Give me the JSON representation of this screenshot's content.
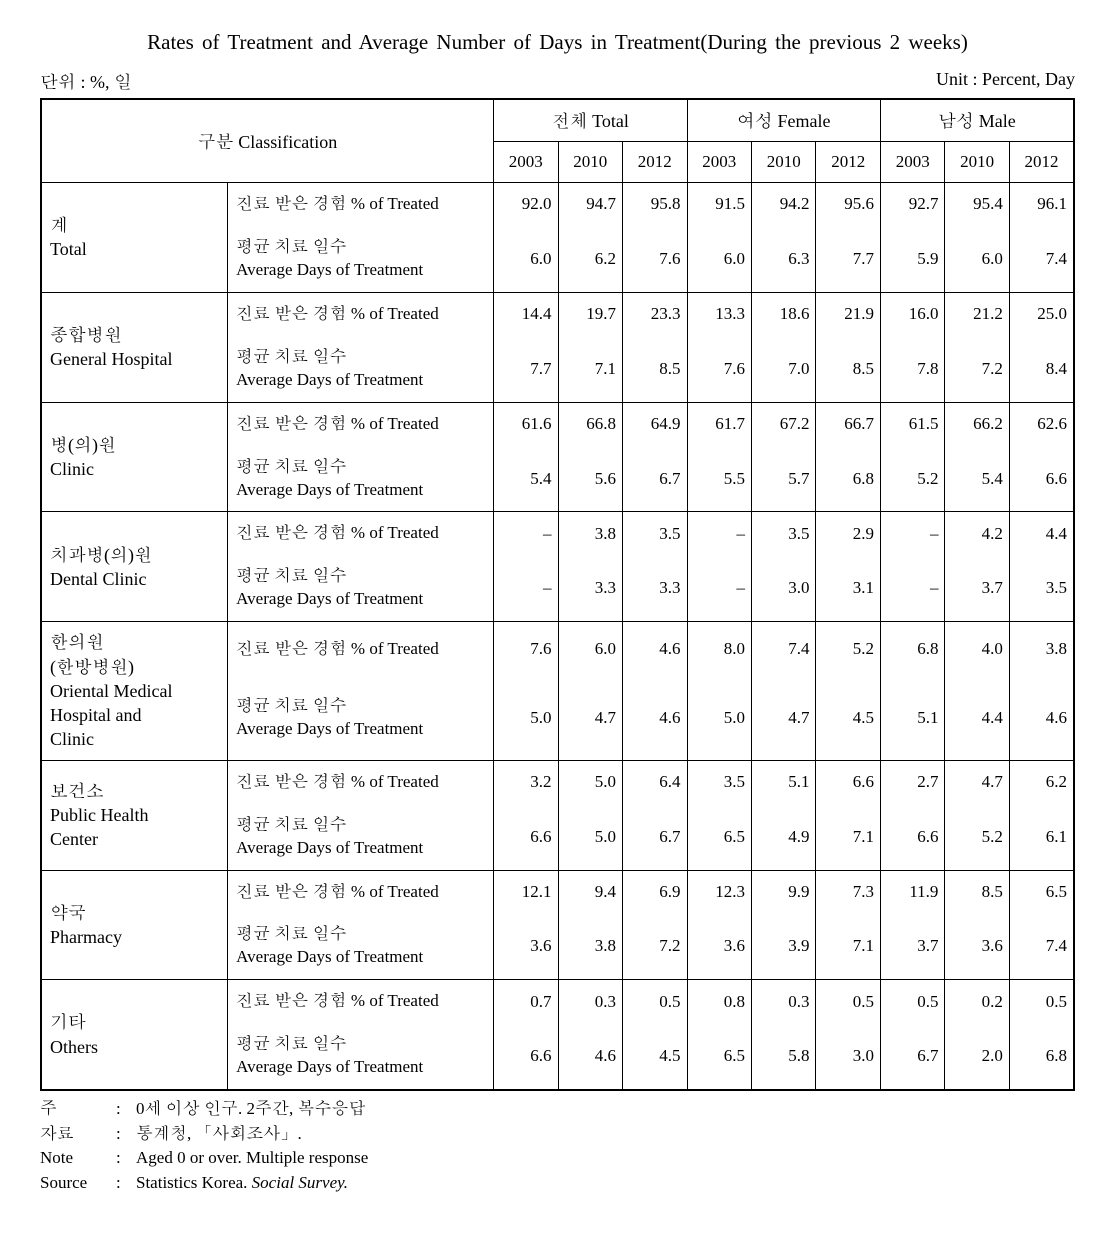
{
  "title": "Rates of Treatment and Average Number of Days in Treatment(During the previous 2 weeks)",
  "unit_left": "단위 : %, 일",
  "unit_right": "Unit : Percent, Day",
  "headers": {
    "classification": "구분 Classification",
    "total": "전체 Total",
    "female": "여성 Female",
    "male": "남성 Male",
    "years": [
      "2003",
      "2010",
      "2012"
    ]
  },
  "metrics": {
    "pct": "진료 받은 경험  % of Treated",
    "days_kr": "평균 치료 일수",
    "days_en": "Average Days of Treatment"
  },
  "categories": [
    {
      "label_kr": "계",
      "label_en": "Total",
      "pct": [
        "92.0",
        "94.7",
        "95.8",
        "91.5",
        "94.2",
        "95.6",
        "92.7",
        "95.4",
        "96.1"
      ],
      "days": [
        "6.0",
        "6.2",
        "7.6",
        "6.0",
        "6.3",
        "7.7",
        "5.9",
        "6.0",
        "7.4"
      ]
    },
    {
      "label_kr": "종합병원",
      "label_en": "General Hospital",
      "pct": [
        "14.4",
        "19.7",
        "23.3",
        "13.3",
        "18.6",
        "21.9",
        "16.0",
        "21.2",
        "25.0"
      ],
      "days": [
        "7.7",
        "7.1",
        "8.5",
        "7.6",
        "7.0",
        "8.5",
        "7.8",
        "7.2",
        "8.4"
      ]
    },
    {
      "label_kr": "병(의)원",
      "label_en": "Clinic",
      "pct": [
        "61.6",
        "66.8",
        "64.9",
        "61.7",
        "67.2",
        "66.7",
        "61.5",
        "66.2",
        "62.6"
      ],
      "days": [
        "5.4",
        "5.6",
        "6.7",
        "5.5",
        "5.7",
        "6.8",
        "5.2",
        "5.4",
        "6.6"
      ]
    },
    {
      "label_kr": "치과병(의)원",
      "label_en": "Dental Clinic",
      "pct": [
        "–",
        "3.8",
        "3.5",
        "–",
        "3.5",
        "2.9",
        "–",
        "4.2",
        "4.4"
      ],
      "days": [
        "–",
        "3.3",
        "3.3",
        "–",
        "3.0",
        "3.1",
        "–",
        "3.7",
        "3.5"
      ]
    },
    {
      "label_kr": "한의원",
      "label_kr2": "(한방병원)",
      "label_en": "Oriental Medical",
      "label_en2": "Hospital and",
      "label_en3": "Clinic",
      "pct": [
        "7.6",
        "6.0",
        "4.6",
        "8.0",
        "7.4",
        "5.2",
        "6.8",
        "4.0",
        "3.8"
      ],
      "days": [
        "5.0",
        "4.7",
        "4.6",
        "5.0",
        "4.7",
        "4.5",
        "5.1",
        "4.4",
        "4.6"
      ]
    },
    {
      "label_kr": "보건소",
      "label_en": "Public Health",
      "label_en2": "Center",
      "pct": [
        "3.2",
        "5.0",
        "6.4",
        "3.5",
        "5.1",
        "6.6",
        "2.7",
        "4.7",
        "6.2"
      ],
      "days": [
        "6.6",
        "5.0",
        "6.7",
        "6.5",
        "4.9",
        "7.1",
        "6.6",
        "5.2",
        "6.1"
      ]
    },
    {
      "label_kr": "약국",
      "label_en": "Pharmacy",
      "pct": [
        "12.1",
        "9.4",
        "6.9",
        "12.3",
        "9.9",
        "7.3",
        "11.9",
        "8.5",
        "6.5"
      ],
      "days": [
        "3.6",
        "3.8",
        "7.2",
        "3.6",
        "3.9",
        "7.1",
        "3.7",
        "3.6",
        "7.4"
      ]
    },
    {
      "label_kr": "기타",
      "label_en": "Others",
      "pct": [
        "0.7",
        "0.3",
        "0.5",
        "0.8",
        "0.3",
        "0.5",
        "0.5",
        "0.2",
        "0.5"
      ],
      "days": [
        "6.6",
        "4.6",
        "4.5",
        "6.5",
        "5.8",
        "3.0",
        "6.7",
        "2.0",
        "6.8"
      ]
    }
  ],
  "footer": {
    "note_kr_label": "주",
    "note_kr": "0세 이상 인구. 2주간, 복수응답",
    "source_kr_label": "자료",
    "source_kr": "통계청, 「사회조사」.",
    "note_en_label": "Note",
    "note_en": "Aged 0 or over. Multiple response",
    "source_en_label": "Source",
    "source_en_1": "Statistics Korea. ",
    "source_en_2": "Social Survey."
  }
}
